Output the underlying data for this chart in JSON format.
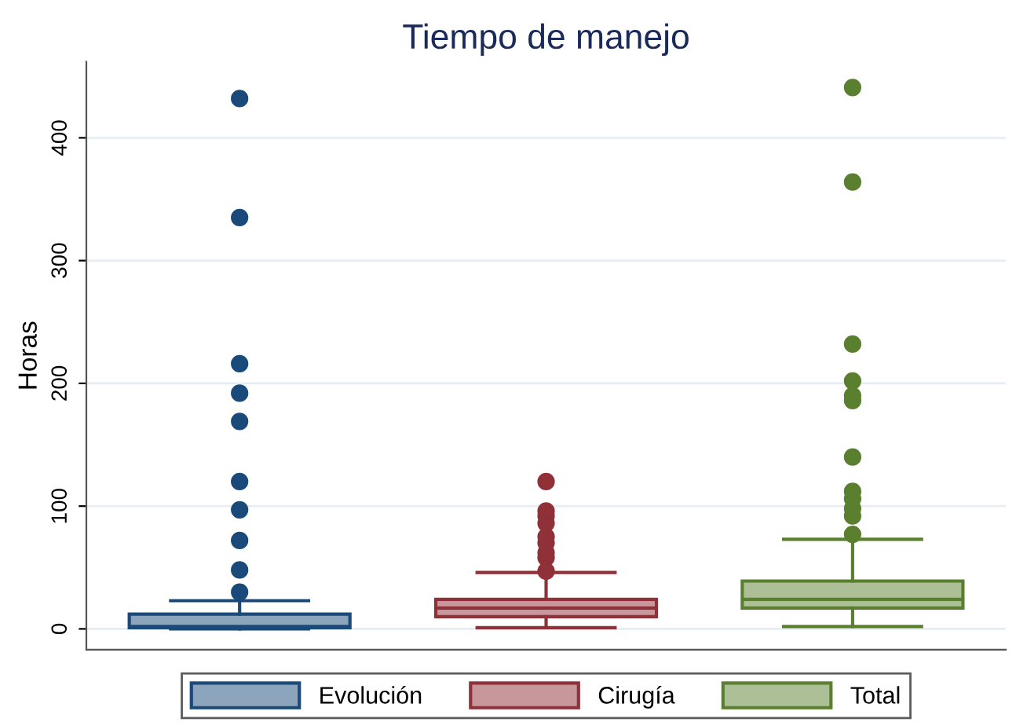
{
  "chart_data": {
    "type": "box",
    "title": "Tiempo de manejo",
    "ylabel": "Horas",
    "categories": [
      null,
      null,
      null
    ],
    "series": [
      {
        "name": "Evolución",
        "color": "#1a4a7a",
        "boxes": [
          {
            "low": 0,
            "q1": 1,
            "median": 2,
            "q3": 12,
            "high": 23,
            "outliers": [
              30,
              48,
              72,
              97,
              120,
              169,
              192,
              216,
              335,
              432
            ]
          },
          null,
          null
        ]
      },
      {
        "name": "Cirugía",
        "color": "#903038",
        "boxes": [
          null,
          {
            "low": 1,
            "q1": 10,
            "median": 17,
            "q3": 24,
            "high": 46,
            "outliers": [
              47,
              58,
              62,
              70,
              75,
              86,
              92,
              96,
              120
            ]
          },
          null
        ]
      },
      {
        "name": "Total",
        "color": "#5a7f2e",
        "boxes": [
          null,
          null,
          {
            "low": 2,
            "q1": 17,
            "median": 24,
            "q3": 39,
            "high": 73,
            "outliers": [
              77,
              92,
              98,
              106,
              112,
              140,
              186,
              190,
              202,
              232,
              364,
              441
            ]
          }
        ]
      }
    ],
    "ylim": [
      -17,
      462
    ],
    "yticks": [
      0,
      100,
      200,
      300,
      400
    ],
    "grid": "y",
    "legend": "bottom"
  }
}
